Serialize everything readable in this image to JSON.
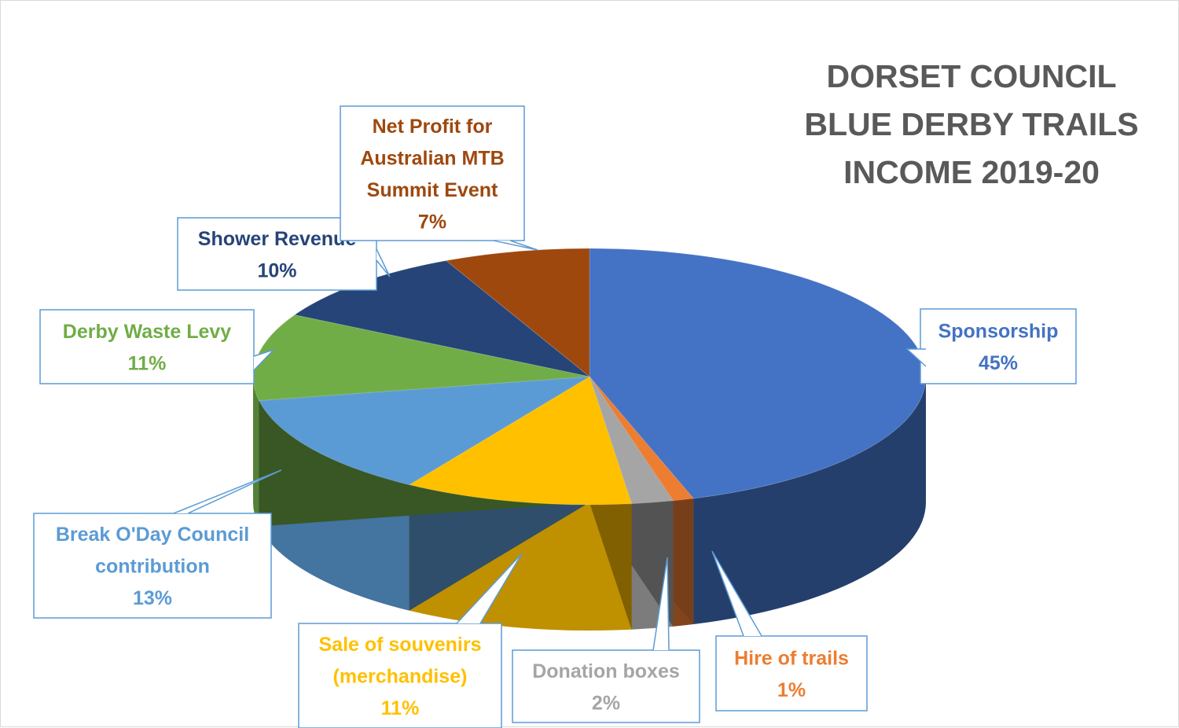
{
  "chart_data": {
    "type": "pie",
    "style": "3d",
    "title": [
      "DORSET COUNCIL",
      "BLUE DERBY TRAILS",
      "INCOME  2019-20"
    ],
    "slices": [
      {
        "label": [
          "Sponsorship"
        ],
        "value": 45,
        "value_label": "45%",
        "color": "#4472c4"
      },
      {
        "label": [
          "Hire of trails"
        ],
        "value": 1,
        "value_label": "1%",
        "color": "#ed7d31"
      },
      {
        "label": [
          "Donation boxes"
        ],
        "value": 2,
        "value_label": "2%",
        "color": "#a5a5a5"
      },
      {
        "label": [
          "Sale of souvenirs",
          "(merchandise)"
        ],
        "value": 11,
        "value_label": "11%",
        "color": "#ffc000"
      },
      {
        "label": [
          "Break O'Day Council",
          "contribution"
        ],
        "value": 13,
        "value_label": "13%",
        "color": "#5b9bd5"
      },
      {
        "label": [
          "Derby Waste Levy"
        ],
        "value": 11,
        "value_label": "11%",
        "color": "#70ad47"
      },
      {
        "label": [
          "Shower Revenue"
        ],
        "value": 10,
        "value_label": "10%",
        "color": "#264478"
      },
      {
        "label": [
          "Net Profit for",
          "Australian MTB",
          "Summit Event"
        ],
        "value": 7,
        "value_label": "7%",
        "color": "#9e480e"
      }
    ]
  }
}
